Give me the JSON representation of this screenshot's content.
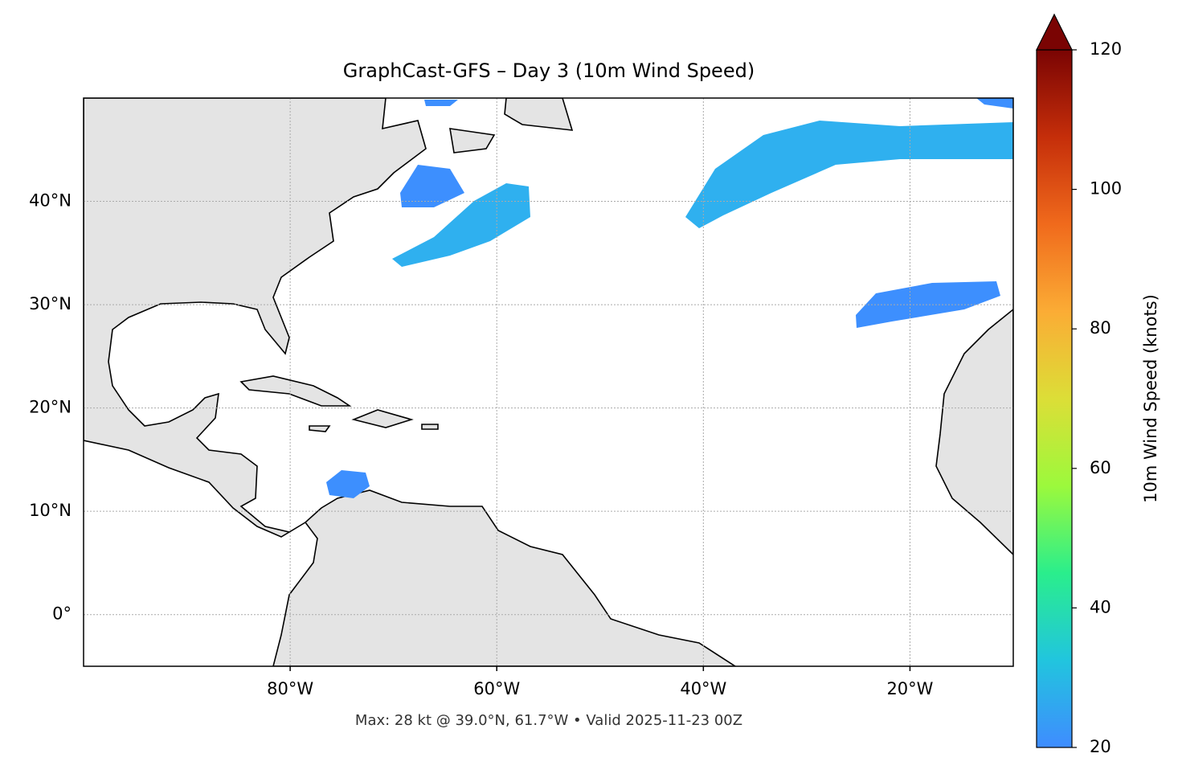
{
  "chart_data": {
    "type": "map",
    "title": "GraphCast-GFS – Day 3 (10m Wind Speed)",
    "xlim": [
      -100,
      -10
    ],
    "ylim": [
      -5,
      50
    ],
    "xticks": [
      {
        "value": -80,
        "label": "80°W"
      },
      {
        "value": -60,
        "label": "60°W"
      },
      {
        "value": -40,
        "label": "40°W"
      },
      {
        "value": -20,
        "label": "20°W"
      }
    ],
    "yticks": [
      {
        "value": 0,
        "label": "0°"
      },
      {
        "value": 10,
        "label": "10°N"
      },
      {
        "value": 20,
        "label": "20°N"
      },
      {
        "value": 30,
        "label": "30°N"
      },
      {
        "value": 40,
        "label": "40°N"
      }
    ],
    "grid": true,
    "annotation": "Max: 28 kt @ 39.0°N, 61.7°W • Valid 2025-11-23 00Z",
    "colorbar": {
      "label": "10m Wind Speed (knots)",
      "lim": [
        20,
        120
      ],
      "ticks": [
        20,
        40,
        60,
        80,
        100,
        120
      ],
      "colors": [
        "#3f8cff",
        "#21c5de",
        "#2aee8c",
        "#9cf93c",
        "#dcde37",
        "#fbac35",
        "#f06a1c",
        "#c52e0a",
        "#7a0403"
      ]
    }
  }
}
